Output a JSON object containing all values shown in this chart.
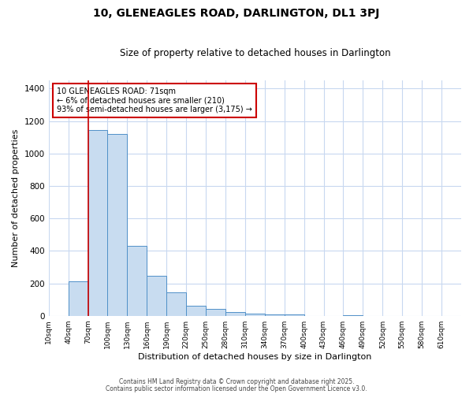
{
  "title": "10, GLENEAGLES ROAD, DARLINGTON, DL1 3PJ",
  "subtitle": "Size of property relative to detached houses in Darlington",
  "xlabel": "Distribution of detached houses by size in Darlington",
  "ylabel": "Number of detached properties",
  "bar_color": "#c8dcf0",
  "bar_edge_color": "#5090c8",
  "background_color": "#ffffff",
  "plot_bg_color": "#ffffff",
  "grid_color": "#c8d8f0",
  "annotation_box_color": "#cc0000",
  "annotation_text": "10 GLENEAGLES ROAD: 71sqm\n← 6% of detached houses are smaller (210)\n93% of semi-detached houses are larger (3,175) →",
  "property_line_x": 70,
  "property_line_color": "#cc0000",
  "bins": [
    10,
    40,
    70,
    100,
    130,
    160,
    190,
    220,
    250,
    280,
    310,
    340,
    370,
    400,
    430,
    460,
    490,
    520,
    550,
    580,
    610
  ],
  "heights": [
    0,
    210,
    1145,
    1120,
    430,
    245,
    145,
    60,
    42,
    25,
    15,
    10,
    10,
    0,
    0,
    5,
    0,
    0,
    0,
    0
  ],
  "ylim": [
    0,
    1450
  ],
  "yticks": [
    0,
    200,
    400,
    600,
    800,
    1000,
    1200,
    1400
  ],
  "footer_line1": "Contains HM Land Registry data © Crown copyright and database right 2025.",
  "footer_line2": "Contains public sector information licensed under the Open Government Licence v3.0."
}
